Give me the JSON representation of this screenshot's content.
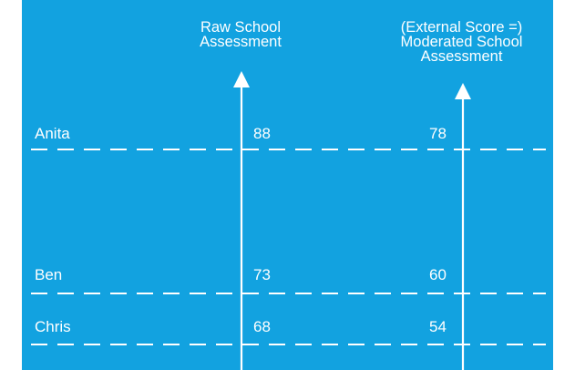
{
  "colors": {
    "background": "#12a2e0",
    "foreground": "#ffffff"
  },
  "axes": [
    {
      "title_lines": [
        "Raw School",
        "Assessment"
      ]
    },
    {
      "title_lines": [
        "(External Score =)",
        "Moderated School",
        "Assessment"
      ]
    }
  ],
  "students": [
    {
      "name": "Anita",
      "raw": "88",
      "moderated": "78"
    },
    {
      "name": "Ben",
      "raw": "73",
      "moderated": "60"
    },
    {
      "name": "Chris",
      "raw": "68",
      "moderated": "54"
    }
  ]
}
